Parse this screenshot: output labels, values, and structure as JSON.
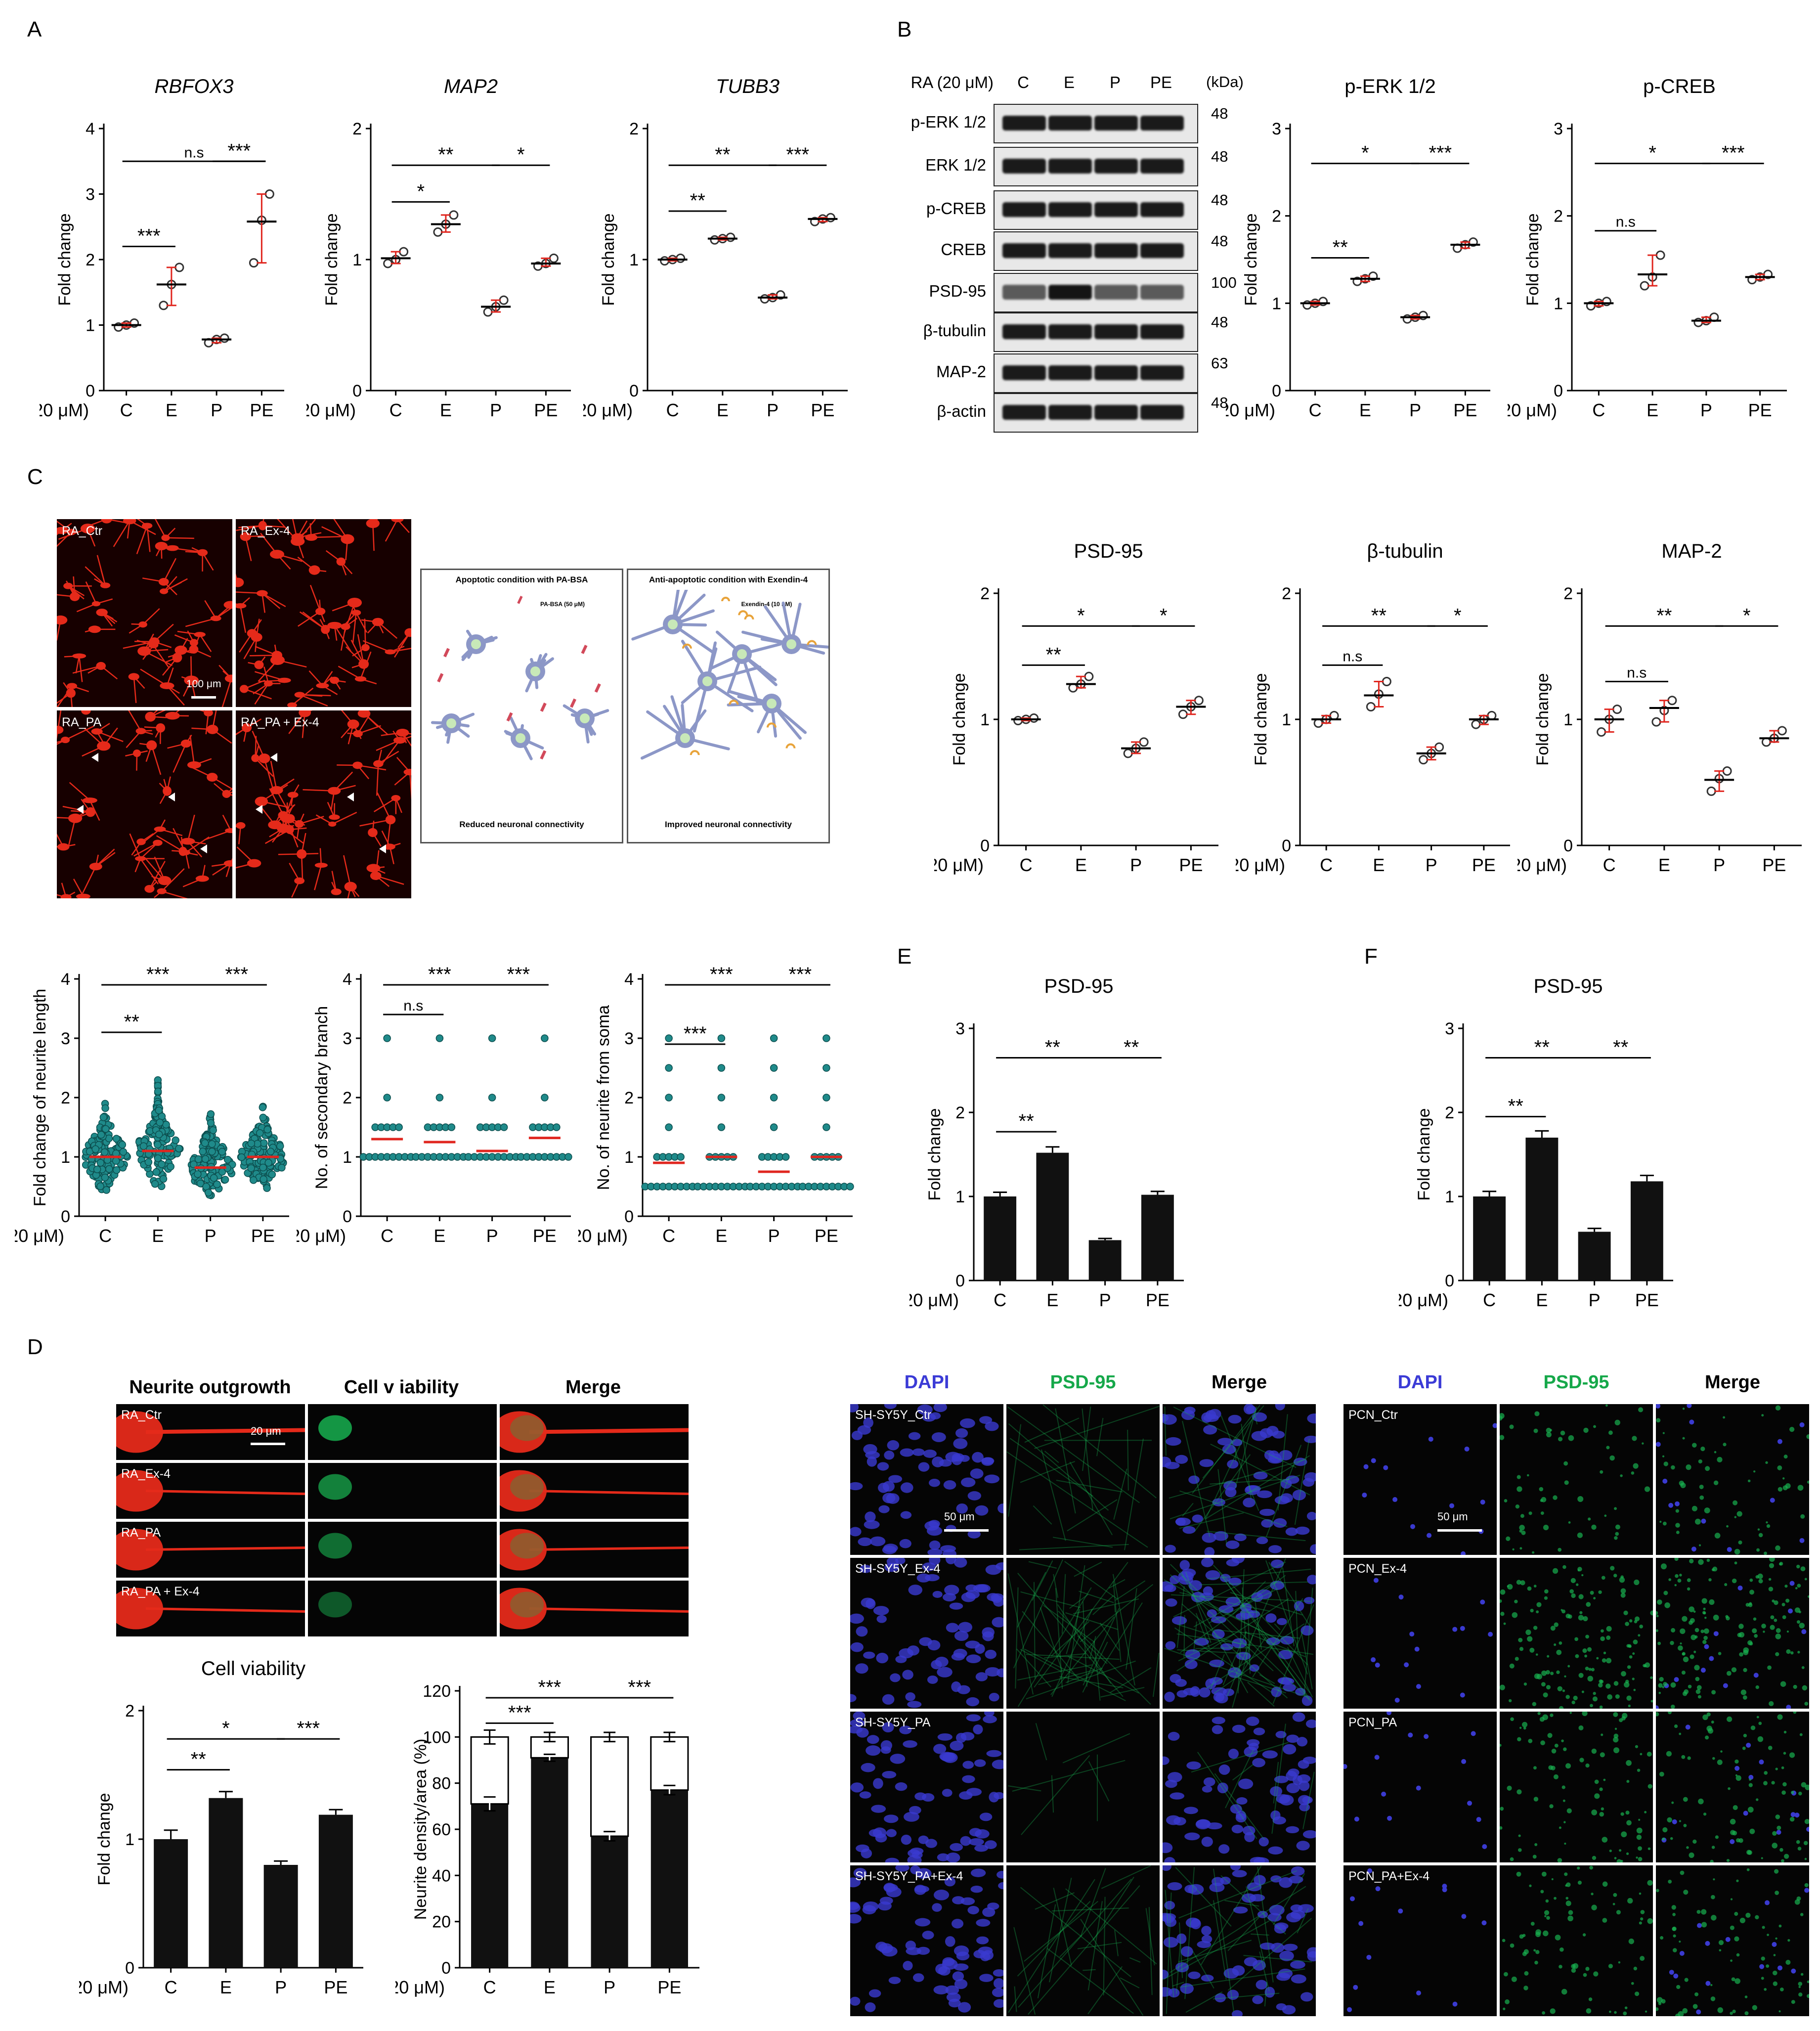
{
  "panel_letters": {
    "A": "A",
    "B": "B",
    "C": "C",
    "D": "D",
    "E": "E",
    "F": "F"
  },
  "x_prefix": "RA (20 μM)",
  "categories": [
    "C",
    "E",
    "P",
    "PE"
  ],
  "colors": {
    "mean_red": "#e0261f",
    "point": "#333333",
    "teal": "#1f8a8a",
    "bar": "#111111",
    "dapi": "#3a3ad0",
    "psd_green": "#18b050",
    "neurite_red": "#e52a1a"
  },
  "chart_data": [
    {
      "id": "rbfox3",
      "panel": "A",
      "type": "scatter",
      "title": "RBFOX3",
      "ylabel": "Fold change",
      "ylim": [
        0,
        4
      ],
      "yticks": [
        0,
        1,
        2,
        3,
        4
      ],
      "categories": [
        "C",
        "E",
        "P",
        "PE"
      ],
      "points": [
        [
          0.97,
          1.0,
          1.03
        ],
        [
          1.3,
          1.62,
          1.88
        ],
        [
          0.73,
          0.78,
          0.8
        ],
        [
          1.95,
          2.6,
          3.0
        ]
      ],
      "means": [
        1.0,
        1.62,
        0.78,
        2.58
      ],
      "sig": [
        {
          "a": 0,
          "b": 3,
          "label": "n.s",
          "y": 3.5
        },
        {
          "a": 2,
          "b": 3,
          "label": "***",
          "y": 3.5
        },
        {
          "a": 0,
          "b": 1,
          "label": "***",
          "y": 2.2
        }
      ]
    },
    {
      "id": "map2_a",
      "panel": "A",
      "type": "scatter",
      "title": "MAP2",
      "ylabel": "Fold change",
      "ylim": [
        0,
        2
      ],
      "yticks": [
        0,
        1,
        2
      ],
      "categories": [
        "C",
        "E",
        "P",
        "PE"
      ],
      "points": [
        [
          0.97,
          1.0,
          1.06
        ],
        [
          1.21,
          1.27,
          1.34
        ],
        [
          0.6,
          0.64,
          0.69
        ],
        [
          0.95,
          0.97,
          1.01
        ]
      ],
      "means": [
        1.01,
        1.27,
        0.64,
        0.97
      ],
      "sig": [
        {
          "a": 0,
          "b": 2,
          "label": "**",
          "y": 1.72
        },
        {
          "a": 2,
          "b": 3,
          "label": "*",
          "y": 1.72
        },
        {
          "a": 0,
          "b": 1,
          "label": "*",
          "y": 1.44
        }
      ]
    },
    {
      "id": "tubb3",
      "panel": "A",
      "type": "scatter",
      "title": "TUBB3",
      "ylabel": "Fold change",
      "ylim": [
        0,
        2
      ],
      "yticks": [
        0,
        1,
        2
      ],
      "categories": [
        "C",
        "E",
        "P",
        "PE"
      ],
      "points": [
        [
          0.99,
          1.0,
          1.01
        ],
        [
          1.15,
          1.16,
          1.17
        ],
        [
          0.7,
          0.71,
          0.73
        ],
        [
          1.29,
          1.31,
          1.32
        ]
      ],
      "means": [
        1.0,
        1.16,
        0.71,
        1.31
      ],
      "sig": [
        {
          "a": 0,
          "b": 2,
          "label": "**",
          "y": 1.72
        },
        {
          "a": 2,
          "b": 3,
          "label": "***",
          "y": 1.72
        },
        {
          "a": 0,
          "b": 1,
          "label": "**",
          "y": 1.37
        }
      ]
    },
    {
      "id": "perk",
      "panel": "B",
      "type": "scatter",
      "title": "p-ERK 1/2",
      "ylabel": "Fold change",
      "ylim": [
        0,
        3
      ],
      "yticks": [
        0,
        1,
        2,
        3
      ],
      "categories": [
        "C",
        "E",
        "P",
        "PE"
      ],
      "points": [
        [
          0.98,
          1.0,
          1.02
        ],
        [
          1.25,
          1.28,
          1.31
        ],
        [
          0.82,
          0.84,
          0.86
        ],
        [
          1.63,
          1.67,
          1.7
        ]
      ],
      "means": [
        1.0,
        1.28,
        0.84,
        1.67
      ],
      "sig": [
        {
          "a": 0,
          "b": 2,
          "label": "*",
          "y": 2.6
        },
        {
          "a": 2,
          "b": 3,
          "label": "***",
          "y": 2.6
        },
        {
          "a": 0,
          "b": 1,
          "label": "**",
          "y": 1.52
        }
      ]
    },
    {
      "id": "pcreb",
      "panel": "B",
      "type": "scatter",
      "title": "p-CREB",
      "ylabel": "Fold change",
      "ylim": [
        0,
        3
      ],
      "yticks": [
        0,
        1,
        2,
        3
      ],
      "categories": [
        "C",
        "E",
        "P",
        "PE"
      ],
      "points": [
        [
          0.97,
          1.0,
          1.02
        ],
        [
          1.2,
          1.3,
          1.55
        ],
        [
          0.78,
          0.8,
          0.84
        ],
        [
          1.27,
          1.3,
          1.33
        ]
      ],
      "means": [
        1.0,
        1.33,
        0.8,
        1.3
      ],
      "sig": [
        {
          "a": 0,
          "b": 2,
          "label": "*",
          "y": 2.6
        },
        {
          "a": 2,
          "b": 3,
          "label": "***",
          "y": 2.6
        },
        {
          "a": 0,
          "b": 1,
          "label": "n.s",
          "y": 1.83
        }
      ]
    },
    {
      "id": "psd95_c",
      "panel": "C",
      "type": "scatter",
      "title": "PSD-95",
      "ylabel": "Fold change",
      "ylim": [
        0,
        2
      ],
      "yticks": [
        0,
        1,
        2
      ],
      "categories": [
        "C",
        "E",
        "P",
        "PE"
      ],
      "points": [
        [
          0.99,
          1.0,
          1.01
        ],
        [
          1.25,
          1.28,
          1.34
        ],
        [
          0.73,
          0.77,
          0.82
        ],
        [
          1.04,
          1.1,
          1.15
        ]
      ],
      "means": [
        1.0,
        1.28,
        0.77,
        1.1
      ],
      "sig": [
        {
          "a": 0,
          "b": 2,
          "label": "*",
          "y": 1.74
        },
        {
          "a": 2,
          "b": 3,
          "label": "*",
          "y": 1.74
        },
        {
          "a": 0,
          "b": 1,
          "label": "**",
          "y": 1.43
        }
      ]
    },
    {
      "id": "btub",
      "panel": "C",
      "type": "scatter",
      "title": "β-tubulin",
      "ylabel": "Fold change",
      "ylim": [
        0,
        2
      ],
      "yticks": [
        0,
        1,
        2
      ],
      "categories": [
        "C",
        "E",
        "P",
        "PE"
      ],
      "points": [
        [
          0.97,
          1.0,
          1.03
        ],
        [
          1.1,
          1.2,
          1.3
        ],
        [
          0.68,
          0.73,
          0.78
        ],
        [
          0.96,
          1.0,
          1.03
        ]
      ],
      "means": [
        1.0,
        1.19,
        0.73,
        1.0
      ],
      "sig": [
        {
          "a": 0,
          "b": 2,
          "label": "**",
          "y": 1.74
        },
        {
          "a": 2,
          "b": 3,
          "label": "*",
          "y": 1.74
        },
        {
          "a": 0,
          "b": 1,
          "label": "n.s",
          "y": 1.43
        }
      ]
    },
    {
      "id": "map2_c",
      "panel": "C",
      "type": "scatter",
      "title": "MAP-2",
      "ylabel": "Fold change",
      "ylim": [
        0,
        2
      ],
      "yticks": [
        0,
        1,
        2
      ],
      "categories": [
        "C",
        "E",
        "P",
        "PE"
      ],
      "points": [
        [
          0.9,
          1.0,
          1.08
        ],
        [
          0.98,
          1.07,
          1.15
        ],
        [
          0.43,
          0.53,
          0.59
        ],
        [
          0.82,
          0.85,
          0.91
        ]
      ],
      "means": [
        1.0,
        1.09,
        0.52,
        0.85
      ],
      "sig": [
        {
          "a": 0,
          "b": 2,
          "label": "**",
          "y": 1.74
        },
        {
          "a": 2,
          "b": 3,
          "label": "*",
          "y": 1.74
        },
        {
          "a": 0,
          "b": 1,
          "label": "n.s",
          "y": 1.3
        }
      ]
    },
    {
      "id": "neurite_len",
      "panel": "C",
      "type": "scatter",
      "ylabel": "Fold change of neurite length",
      "ylim": [
        0,
        4
      ],
      "yticks": [
        0,
        1,
        2,
        3,
        4
      ],
      "categories": [
        "C",
        "E",
        "P",
        "PE"
      ],
      "means": [
        1.0,
        1.1,
        0.82,
        1.0
      ],
      "spread": [
        [
          0.3,
          2.1
        ],
        [
          0.4,
          2.6
        ],
        [
          0.3,
          1.9
        ],
        [
          0.4,
          2.0
        ]
      ],
      "sig": [
        {
          "a": 0,
          "b": 2,
          "label": "***",
          "y": 3.9
        },
        {
          "a": 2,
          "b": 3,
          "label": "***",
          "y": 3.9
        },
        {
          "a": 0,
          "b": 1,
          "label": "**",
          "y": 3.1
        }
      ]
    },
    {
      "id": "sec_branch",
      "panel": "C",
      "type": "scatter",
      "ylabel": "No. of secondary branch",
      "ylim": [
        0,
        4
      ],
      "yticks": [
        0,
        1,
        2,
        3,
        4
      ],
      "categories": [
        "C",
        "E",
        "P",
        "PE"
      ],
      "means": [
        1.3,
        1.25,
        1.1,
        1.32
      ],
      "levels": [
        1,
        1.5,
        2,
        3
      ],
      "sig": [
        {
          "a": 0,
          "b": 2,
          "label": "***",
          "y": 3.9
        },
        {
          "a": 2,
          "b": 3,
          "label": "***",
          "y": 3.9
        },
        {
          "a": 0,
          "b": 1,
          "label": "n.s",
          "y": 3.4
        }
      ]
    },
    {
      "id": "neurite_soma",
      "panel": "C",
      "type": "scatter",
      "ylabel": "No. of neurite from soma",
      "ylim": [
        0,
        4
      ],
      "yticks": [
        0,
        1,
        2,
        3,
        4
      ],
      "categories": [
        "C",
        "E",
        "P",
        "PE"
      ],
      "means": [
        0.9,
        1.0,
        0.75,
        1.0
      ],
      "levels": [
        0.5,
        1,
        1.5,
        2,
        2.5,
        3
      ],
      "sig": [
        {
          "a": 0,
          "b": 2,
          "label": "***",
          "y": 3.9
        },
        {
          "a": 2,
          "b": 3,
          "label": "***",
          "y": 3.9
        },
        {
          "a": 0,
          "b": 1,
          "label": "***",
          "y": 2.9
        }
      ]
    },
    {
      "id": "psd95_e",
      "panel": "E",
      "type": "bar",
      "title": "PSD-95",
      "ylabel": "Fold change",
      "ylim": [
        0,
        3
      ],
      "yticks": [
        0,
        1,
        2,
        3
      ],
      "categories": [
        "C",
        "E",
        "P",
        "PE"
      ],
      "values": [
        1.0,
        1.52,
        0.48,
        1.02
      ],
      "errors": [
        0.05,
        0.07,
        0.02,
        0.04
      ],
      "sig": [
        {
          "a": 0,
          "b": 2,
          "label": "**",
          "y": 2.65
        },
        {
          "a": 2,
          "b": 3,
          "label": "**",
          "y": 2.65
        },
        {
          "a": 0,
          "b": 1,
          "label": "**",
          "y": 1.77
        }
      ]
    },
    {
      "id": "psd95_f",
      "panel": "F",
      "type": "bar",
      "title": "PSD-95",
      "ylabel": "Fold change",
      "ylim": [
        0,
        3
      ],
      "yticks": [
        0,
        1,
        2,
        3
      ],
      "categories": [
        "C",
        "E",
        "P",
        "PE"
      ],
      "values": [
        1.0,
        1.7,
        0.58,
        1.18
      ],
      "errors": [
        0.06,
        0.08,
        0.04,
        0.07
      ],
      "sig": [
        {
          "a": 0,
          "b": 2,
          "label": "**",
          "y": 2.65
        },
        {
          "a": 2,
          "b": 3,
          "label": "**",
          "y": 2.65
        },
        {
          "a": 0,
          "b": 1,
          "label": "**",
          "y": 1.95
        }
      ]
    },
    {
      "id": "cell_via",
      "panel": "D",
      "type": "bar",
      "title": "Cell viability",
      "ylabel": "Fold change",
      "ylim": [
        0,
        2
      ],
      "yticks": [
        0,
        1,
        2
      ],
      "categories": [
        "C",
        "E",
        "P",
        "PE"
      ],
      "values": [
        1.0,
        1.32,
        0.8,
        1.19
      ],
      "errors": [
        0.07,
        0.05,
        0.03,
        0.04
      ],
      "sig": [
        {
          "a": 0,
          "b": 2,
          "label": "*",
          "y": 1.78
        },
        {
          "a": 2,
          "b": 3,
          "label": "***",
          "y": 1.78
        },
        {
          "a": 0,
          "b": 1,
          "label": "**",
          "y": 1.54
        }
      ]
    },
    {
      "id": "neurite_density",
      "panel": "D",
      "type": "bar",
      "ylabel": "Neurite density/area (%)",
      "ylim": [
        0,
        120
      ],
      "yticks": [
        0,
        20,
        40,
        60,
        80,
        100,
        120
      ],
      "categories": [
        "C",
        "E",
        "P",
        "PE"
      ],
      "series": [
        {
          "values": [
            71,
            91,
            57,
            77
          ],
          "errors": [
            3,
            1.5,
            2,
            2
          ]
        },
        {
          "values": [
            29,
            9,
            43,
            23
          ],
          "errors": [
            3,
            2,
            2,
            2
          ]
        }
      ],
      "sig": [
        {
          "a": 0,
          "b": 2,
          "label": "***",
          "y": 117
        },
        {
          "a": 2,
          "b": 3,
          "label": "***",
          "y": 117
        },
        {
          "a": 0,
          "b": 1,
          "label": "***",
          "y": 106
        }
      ]
    }
  ],
  "blot": {
    "treatment": "RA (20 μM)",
    "lanes": [
      "C",
      "E",
      "P",
      "PE"
    ],
    "kda_header": "(kDa)",
    "rows": [
      {
        "label": "p-ERK 1/2",
        "kda": "48"
      },
      {
        "label": "ERK 1/2",
        "kda": "48"
      },
      {
        "label": "p-CREB",
        "kda": "48"
      },
      {
        "label": "CREB",
        "kda": "48"
      },
      {
        "label": "PSD-95",
        "kda": "100"
      },
      {
        "label": "β-tubulin",
        "kda": "48"
      },
      {
        "label": "MAP-2",
        "kda": "63"
      },
      {
        "label": "β-actin",
        "kda": "48"
      }
    ]
  },
  "c_images": {
    "labels": [
      "RA_Ctr",
      "RA_Ex-4",
      "RA_PA",
      "RA_PA  + Ex-4"
    ],
    "scale": "100 μm"
  },
  "schematic": {
    "left_title": "Apoptotic condition with PA-BSA",
    "left_legend": "PA-BSA (50 μM)",
    "left_caption": "Reduced neuronal connectivity",
    "right_title": "Anti-apoptotic condition with Exendin-4",
    "right_legend": "Exendin-4 (10 nM)",
    "right_caption": "Improved neuronal connectivity"
  },
  "d_images": {
    "headers": [
      "Neurite outgrowth",
      "Cell v iability",
      "Merge"
    ],
    "rows": [
      "RA_Ctr",
      "RA_Ex-4",
      "RA_PA",
      "RA_PA  + Ex-4"
    ],
    "scale": "20 μm"
  },
  "e_images": {
    "headers": [
      "DAPI",
      "PSD-95",
      "Merge"
    ],
    "rows": [
      "SH-SY5Y_Ctr",
      "SH-SY5Y_Ex-4",
      "SH-SY5Y_PA",
      "SH-SY5Y_PA+Ex-4"
    ],
    "scale": "50 μm"
  },
  "f_images": {
    "headers": [
      "DAPI",
      "PSD-95",
      "Merge"
    ],
    "rows": [
      "PCN_Ctr",
      "PCN_Ex-4",
      "PCN_PA",
      "PCN_PA+Ex-4"
    ],
    "scale": "50 μm"
  }
}
